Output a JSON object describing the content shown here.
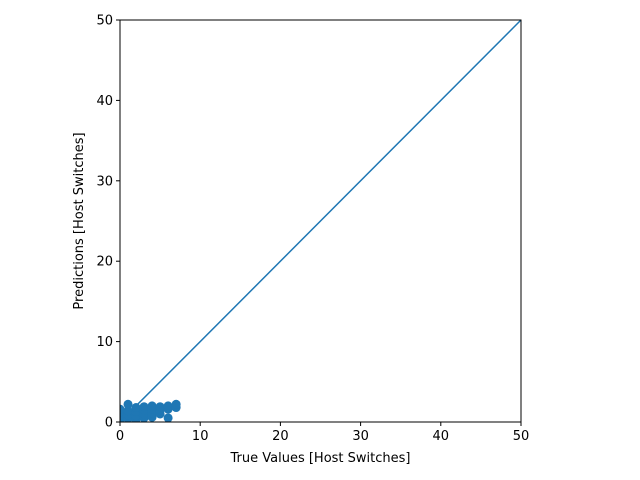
{
  "chart_data": {
    "type": "scatter",
    "title": "",
    "xlabel": "True Values [Host Switches]",
    "ylabel": "Predictions [Host Switches]",
    "xlim": [
      0,
      50
    ],
    "ylim": [
      0,
      50
    ],
    "xticks": [
      0,
      10,
      20,
      30,
      40,
      50
    ],
    "yticks": [
      0,
      10,
      20,
      30,
      40,
      50
    ],
    "grid": false,
    "marker_color": "#1f77b4",
    "line_color": "#1f77b4",
    "reference_line": {
      "x": [
        0,
        50
      ],
      "y": [
        0,
        50
      ]
    },
    "points": [
      [
        0,
        0.3
      ],
      [
        0,
        0.8
      ],
      [
        0,
        1.2
      ],
      [
        0,
        1.6
      ],
      [
        1,
        0.4
      ],
      [
        1,
        0.9
      ],
      [
        1,
        1.4
      ],
      [
        1,
        2.2
      ],
      [
        2,
        0.3
      ],
      [
        2,
        0.8
      ],
      [
        2,
        1.3
      ],
      [
        2,
        1.8
      ],
      [
        3,
        0.5
      ],
      [
        3,
        1.0
      ],
      [
        3,
        1.5
      ],
      [
        3,
        1.9
      ],
      [
        4,
        0.6
      ],
      [
        4,
        1.1
      ],
      [
        4,
        1.6
      ],
      [
        4,
        2.0
      ],
      [
        5,
        1.0
      ],
      [
        5,
        1.5
      ],
      [
        5,
        1.9
      ],
      [
        6,
        0.5
      ],
      [
        6,
        1.6
      ],
      [
        6,
        2.0
      ],
      [
        7,
        1.8
      ],
      [
        7,
        2.2
      ]
    ]
  }
}
